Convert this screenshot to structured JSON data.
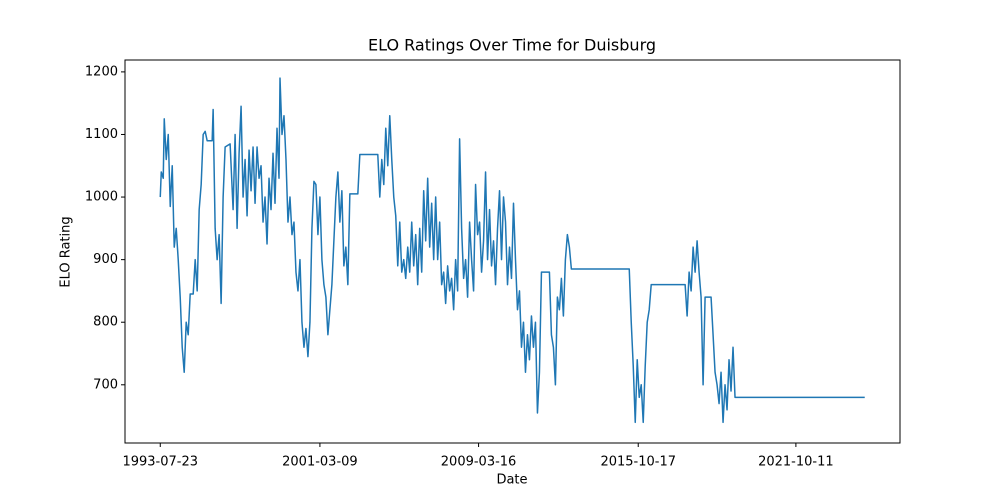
{
  "chart_data": {
    "type": "line",
    "title": "ELO Ratings Over Time for Duisburg",
    "x_label": "Date",
    "y_label": "ELO Rating",
    "xlim": [
      -212,
      4448
    ],
    "ylim": [
      607,
      1219
    ],
    "xticks": [
      {
        "value": 0,
        "label": "1993-07-23"
      },
      {
        "value": 960,
        "label": "2001-03-09"
      },
      {
        "value": 1914,
        "label": "2009-03-16"
      },
      {
        "value": 2874,
        "label": "2015-10-17"
      },
      {
        "value": 3822,
        "label": "2021-10-11"
      }
    ],
    "yticks": [
      700,
      800,
      900,
      1000,
      1100,
      1200
    ],
    "series": [
      {
        "color": "#1f77b4",
        "x": [
          0,
          6,
          18,
          24,
          36,
          48,
          60,
          72,
          84,
          96,
          108,
          120,
          132,
          144,
          156,
          168,
          180,
          198,
          210,
          222,
          234,
          246,
          258,
          270,
          282,
          312,
          318,
          330,
          342,
          354,
          366,
          378,
          390,
          420,
          438,
          450,
          462,
          474,
          486,
          498,
          510,
          522,
          534,
          546,
          558,
          570,
          582,
          594,
          606,
          618,
          630,
          642,
          654,
          666,
          678,
          690,
          702,
          714,
          720,
          732,
          744,
          756,
          768,
          780,
          792,
          804,
          816,
          828,
          840,
          852,
          864,
          876,
          888,
          900,
          912,
          924,
          936,
          948,
          960,
          972,
          984,
          996,
          1008,
          1020,
          1032,
          1044,
          1056,
          1068,
          1080,
          1092,
          1104,
          1116,
          1128,
          1140,
          1188,
          1200,
          1308,
          1320,
          1332,
          1344,
          1356,
          1368,
          1380,
          1392,
          1404,
          1416,
          1428,
          1440,
          1452,
          1464,
          1476,
          1488,
          1500,
          1512,
          1524,
          1536,
          1548,
          1560,
          1572,
          1584,
          1596,
          1608,
          1620,
          1632,
          1644,
          1656,
          1668,
          1680,
          1692,
          1704,
          1716,
          1728,
          1740,
          1752,
          1764,
          1776,
          1788,
          1800,
          1812,
          1824,
          1836,
          1848,
          1860,
          1872,
          1884,
          1896,
          1908,
          1920,
          1932,
          1944,
          1956,
          1968,
          1980,
          1992,
          2004,
          2016,
          2028,
          2040,
          2052,
          2064,
          2076,
          2088,
          2100,
          2112,
          2124,
          2136,
          2148,
          2160,
          2172,
          2184,
          2196,
          2208,
          2220,
          2232,
          2244,
          2256,
          2268,
          2280,
          2292,
          2340,
          2352,
          2364,
          2376,
          2388,
          2400,
          2412,
          2424,
          2436,
          2448,
          2460,
          2472,
          2820,
          2832,
          2844,
          2856,
          2868,
          2880,
          2892,
          2904,
          2916,
          2928,
          2940,
          2952,
          3156,
          3168,
          3180,
          3192,
          3204,
          3216,
          3228,
          3240,
          3252,
          3264,
          3276,
          3312,
          3324,
          3336,
          3348,
          3360,
          3372,
          3384,
          3396,
          3408,
          3420,
          3432,
          3444,
          3456,
          4236
        ],
        "values": [
          1000,
          1040,
          1030,
          1125,
          1060,
          1100,
          985,
          1050,
          920,
          950,
          900,
          840,
          760,
          720,
          800,
          780,
          845,
          845,
          900,
          850,
          980,
          1020,
          1100,
          1105,
          1090,
          1090,
          1140,
          950,
          900,
          940,
          830,
          1000,
          1080,
          1085,
          980,
          1100,
          950,
          1070,
          1145,
          1000,
          1060,
          970,
          1075,
          1010,
          1080,
          990,
          1080,
          1030,
          1050,
          960,
          1000,
          925,
          1030,
          980,
          1070,
          990,
          1110,
          1030,
          1190,
          1100,
          1130,
          1060,
          960,
          1000,
          940,
          960,
          880,
          850,
          900,
          800,
          760,
          790,
          745,
          800,
          950,
          1025,
          1020,
          940,
          1000,
          900,
          860,
          840,
          780,
          820,
          860,
          930,
          1000,
          1040,
          960,
          1010,
          890,
          920,
          860,
          1005,
          1005,
          1068,
          1068,
          1000,
          1060,
          1020,
          1110,
          1050,
          1130,
          1060,
          1000,
          970,
          890,
          960,
          880,
          900,
          870,
          920,
          880,
          960,
          890,
          940,
          860,
          950,
          880,
          1010,
          930,
          1030,
          920,
          990,
          900,
          1000,
          900,
          960,
          860,
          880,
          830,
          890,
          850,
          870,
          820,
          900,
          850,
          1093,
          950,
          870,
          900,
          840,
          960,
          900,
          850,
          1020,
          940,
          960,
          880,
          930,
          1040,
          900,
          980,
          890,
          930,
          860,
          950,
          1010,
          900,
          1000,
          960,
          860,
          920,
          870,
          990,
          900,
          820,
          850,
          760,
          800,
          720,
          780,
          740,
          810,
          760,
          800,
          655,
          720,
          880,
          880,
          780,
          760,
          700,
          840,
          820,
          870,
          810,
          900,
          940,
          920,
          885,
          885,
          800,
          730,
          640,
          740,
          680,
          700,
          640,
          730,
          800,
          820,
          860,
          860,
          810,
          880,
          850,
          920,
          880,
          930,
          880,
          840,
          700,
          840,
          840,
          780,
          720,
          700,
          670,
          720,
          640,
          700,
          660,
          740,
          690,
          760,
          680,
          680
        ]
      }
    ]
  }
}
